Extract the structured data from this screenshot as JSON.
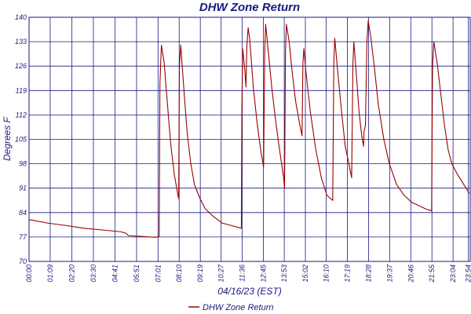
{
  "chart_data": {
    "type": "line",
    "title": "DHW Zone Return",
    "xlabel": "04/16/23 (EST)",
    "ylabel": "Degrees F",
    "ylim": [
      70,
      140
    ],
    "xlim_hours": [
      0,
      24
    ],
    "y_ticks": [
      "70",
      "77",
      "84",
      "91",
      "98",
      "105",
      "112",
      "119",
      "126",
      "133",
      "140"
    ],
    "x_ticks": [
      {
        "label": "00:00",
        "hour": 0.0
      },
      {
        "label": "01:09",
        "hour": 1.15
      },
      {
        "label": "02:20",
        "hour": 2.3333
      },
      {
        "label": "03:30",
        "hour": 3.5
      },
      {
        "label": "04:41",
        "hour": 4.6833
      },
      {
        "label": "05:51",
        "hour": 5.85
      },
      {
        "label": "07:01",
        "hour": 7.0167
      },
      {
        "label": "08:10",
        "hour": 8.1667
      },
      {
        "label": "09:19",
        "hour": 9.3167
      },
      {
        "label": "10:27",
        "hour": 10.45
      },
      {
        "label": "11:36",
        "hour": 11.6
      },
      {
        "label": "12:45",
        "hour": 12.75
      },
      {
        "label": "13:53",
        "hour": 13.8833
      },
      {
        "label": "15:02",
        "hour": 15.0333
      },
      {
        "label": "16:10",
        "hour": 16.1667
      },
      {
        "label": "17:19",
        "hour": 17.3167
      },
      {
        "label": "18:28",
        "hour": 18.4667
      },
      {
        "label": "19:37",
        "hour": 19.6167
      },
      {
        "label": "20:46",
        "hour": 20.7667
      },
      {
        "label": "21:55",
        "hour": 21.9167
      },
      {
        "label": "23:04",
        "hour": 23.0667
      },
      {
        "label": "23:54",
        "hour": 23.9
      }
    ],
    "grid": true,
    "legend": "bottom-center",
    "series": [
      {
        "name": "DHW Zone Return",
        "color": "#990000",
        "points": [
          [
            0.0,
            82
          ],
          [
            1.0,
            81
          ],
          [
            2.0,
            80.3
          ],
          [
            3.0,
            79.5
          ],
          [
            4.0,
            79
          ],
          [
            5.0,
            78.5
          ],
          [
            5.3,
            78
          ],
          [
            5.4,
            77.4
          ],
          [
            6.0,
            77.2
          ],
          [
            6.9,
            76.9
          ],
          [
            7.08,
            77.2
          ],
          [
            7.12,
            121
          ],
          [
            7.2,
            132
          ],
          [
            7.35,
            127
          ],
          [
            7.5,
            117
          ],
          [
            7.7,
            104
          ],
          [
            7.9,
            95
          ],
          [
            8.1,
            89
          ],
          [
            8.14,
            88
          ],
          [
            8.18,
            126
          ],
          [
            8.25,
            132
          ],
          [
            8.4,
            121
          ],
          [
            8.6,
            107
          ],
          [
            8.8,
            98
          ],
          [
            9.0,
            92
          ],
          [
            9.3,
            88
          ],
          [
            9.6,
            85
          ],
          [
            10.0,
            83
          ],
          [
            10.5,
            81
          ],
          [
            11.0,
            80.3
          ],
          [
            11.55,
            79.5
          ],
          [
            11.58,
            114
          ],
          [
            11.62,
            131
          ],
          [
            11.68,
            128
          ],
          [
            11.75,
            124
          ],
          [
            11.8,
            120
          ],
          [
            11.85,
            132
          ],
          [
            11.92,
            137
          ],
          [
            12.0,
            134
          ],
          [
            12.2,
            120
          ],
          [
            12.4,
            110
          ],
          [
            12.6,
            102
          ],
          [
            12.76,
            97
          ],
          [
            12.82,
            130
          ],
          [
            12.87,
            138
          ],
          [
            13.0,
            131
          ],
          [
            13.2,
            120
          ],
          [
            13.4,
            111
          ],
          [
            13.6,
            103
          ],
          [
            13.85,
            94
          ],
          [
            13.9,
            91
          ],
          [
            13.95,
            130
          ],
          [
            14.0,
            138
          ],
          [
            14.15,
            133
          ],
          [
            14.3,
            125
          ],
          [
            14.5,
            116
          ],
          [
            14.7,
            110
          ],
          [
            14.85,
            106
          ],
          [
            14.9,
            127
          ],
          [
            14.95,
            131
          ],
          [
            15.05,
            125
          ],
          [
            15.3,
            113
          ],
          [
            15.6,
            102
          ],
          [
            15.9,
            94
          ],
          [
            16.2,
            89
          ],
          [
            16.4,
            88
          ],
          [
            16.52,
            87.5
          ],
          [
            16.58,
            127
          ],
          [
            16.63,
            134
          ],
          [
            16.8,
            124
          ],
          [
            17.0,
            113
          ],
          [
            17.2,
            103
          ],
          [
            17.4,
            98
          ],
          [
            17.55,
            94
          ],
          [
            17.62,
            127
          ],
          [
            17.67,
            133
          ],
          [
            17.8,
            124
          ],
          [
            17.95,
            113
          ],
          [
            18.1,
            106
          ],
          [
            18.2,
            103
          ],
          [
            18.22,
            107
          ],
          [
            18.3,
            109
          ],
          [
            18.38,
            133
          ],
          [
            18.45,
            139
          ],
          [
            18.6,
            134
          ],
          [
            18.8,
            125
          ],
          [
            19.0,
            115
          ],
          [
            19.3,
            105
          ],
          [
            19.6,
            98
          ],
          [
            20.0,
            92
          ],
          [
            20.4,
            89
          ],
          [
            20.8,
            87
          ],
          [
            21.2,
            86
          ],
          [
            21.6,
            85
          ],
          [
            21.9,
            84.5
          ],
          [
            21.95,
            126
          ],
          [
            22.02,
            133
          ],
          [
            22.2,
            127
          ],
          [
            22.4,
            118
          ],
          [
            22.6,
            109
          ],
          [
            22.8,
            102
          ],
          [
            23.0,
            98
          ],
          [
            23.3,
            95
          ],
          [
            23.6,
            92.5
          ],
          [
            23.95,
            89.5
          ]
        ]
      }
    ]
  }
}
